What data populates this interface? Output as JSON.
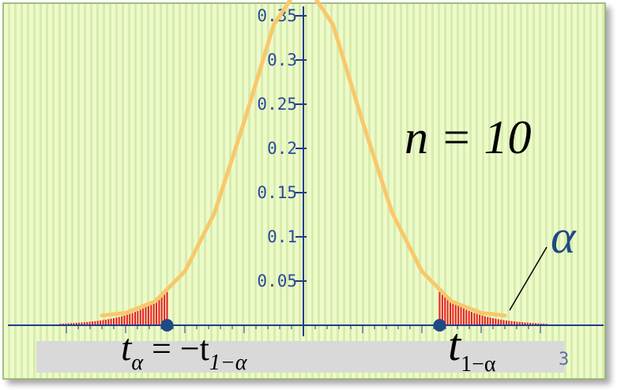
{
  "chart_data": {
    "type": "area",
    "title": "",
    "xlabel": "",
    "ylabel": "",
    "xlim": [
      -4.1,
      4.1
    ],
    "ylim": [
      0,
      0.36
    ],
    "y_ticks": [
      {
        "value": 0.05,
        "label": "0.05"
      },
      {
        "value": 0.1,
        "label": "0.1"
      },
      {
        "value": 0.15,
        "label": "0.15"
      },
      {
        "value": 0.2,
        "label": "0.2"
      },
      {
        "value": 0.25,
        "label": "0.25"
      },
      {
        "value": 0.3,
        "label": "0.3"
      },
      {
        "value": 0.35,
        "label": "0.35"
      }
    ],
    "x_tick_fragment": "3",
    "series": [
      {
        "x": [
          -3.4,
          -3.0,
          -2.5,
          -2.0,
          -1.5,
          -1.0,
          -0.5,
          0.0,
          0.5,
          1.0,
          1.5,
          2.0,
          2.5,
          3.0,
          3.4
        ],
        "values": [
          0.011,
          0.014,
          0.027,
          0.061,
          0.127,
          0.23,
          0.34,
          0.39,
          0.34,
          0.23,
          0.127,
          0.061,
          0.027,
          0.014,
          0.011
        ]
      }
    ],
    "shaded_regions": [
      {
        "x_from": -4.1,
        "x_to": -2.3,
        "color": "#ee1c24"
      },
      {
        "x_from": 2.3,
        "x_to": 4.1,
        "color": "#ee1c24"
      }
    ],
    "critical_points": [
      -2.3,
      2.3
    ],
    "grid": true,
    "colors": {
      "curve": "#f8c86a",
      "tail": "#ee1c24",
      "axis": "#1e3d8c",
      "point": "#1f4a86",
      "background": "#eefac8",
      "stripe": "#d6ecb0"
    }
  },
  "annotations": {
    "n_label": "n = 10",
    "alpha_label": "α",
    "left_crit": {
      "t": "t",
      "sub": "α",
      "mid": " = −t",
      "sub2": "1−α"
    },
    "right_crit": {
      "t": "t",
      "sub": "1−α"
    }
  }
}
